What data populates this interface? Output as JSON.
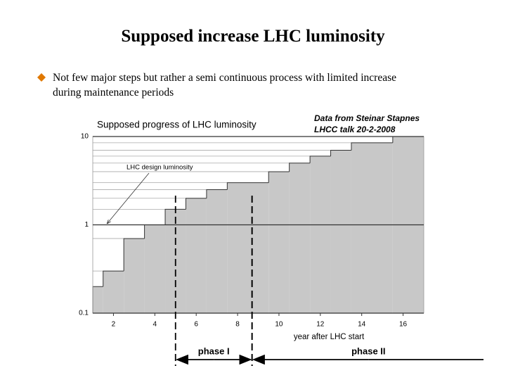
{
  "title": "Supposed increase LHC luminosity",
  "bullet": [
    "Not few major steps but rather a semi continuous process with limited increase",
    "during maintenance periods"
  ],
  "chart_data": {
    "type": "step",
    "title": "Supposed progress of LHC luminosity",
    "source": [
      "Data from Steinar Stapnes",
      "LHCC talk 20-2-2008"
    ],
    "x_label": "year after LHC start",
    "annotation": {
      "text": "LHC design luminosity",
      "x": 1.7,
      "y": 1
    },
    "series": [
      {
        "color": "#c8c8c8",
        "x": [
          1,
          1.5,
          2.5,
          3.5,
          4.5,
          5.5,
          6.5,
          7.5,
          9.5,
          10.5,
          11.5,
          12.5,
          13.5,
          15.5
        ],
        "values": [
          0.2,
          0.3,
          0.7,
          1,
          1.5,
          2,
          2.5,
          3,
          4,
          5,
          6,
          7,
          8.5,
          10
        ]
      }
    ],
    "phases": [
      {
        "label": "phase I",
        "start": 5,
        "end": 8.7
      },
      {
        "label": "phase II",
        "start": 8.7
      }
    ],
    "xlim": [
      1,
      17
    ],
    "xticks": [
      2,
      4,
      6,
      8,
      10,
      12,
      14,
      16
    ],
    "ylim": [
      0.1,
      10
    ],
    "yticks": [
      0.1,
      1,
      10
    ],
    "log_y": true
  }
}
